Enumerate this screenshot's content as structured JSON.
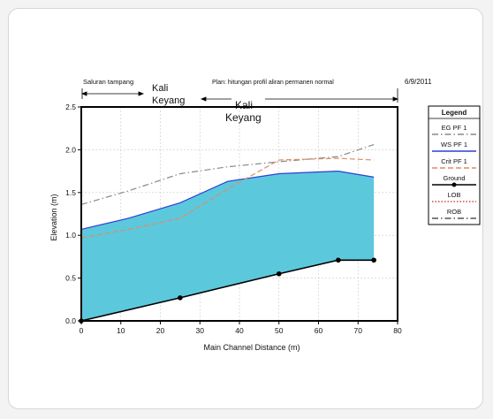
{
  "header": {
    "left": "Saluran tampang",
    "right": "Plan: hitungan profil aliran permanen normal",
    "date": "6/9/2011"
  },
  "annotations": {
    "reach_upper": [
      "Kali",
      "Keyang"
    ],
    "reach_main": [
      "Kali",
      "Keyang"
    ]
  },
  "chart_data": {
    "type": "line",
    "xlabel": "Main Channel Distance (m)",
    "ylabel": "Elevation (m)",
    "xlim": [
      0,
      80
    ],
    "ylim": [
      0,
      2.5
    ],
    "x_ticks": [
      "0",
      "10",
      "20",
      "30",
      "40",
      "50",
      "60",
      "70",
      "80"
    ],
    "y_ticks": [
      "0.0",
      "0.5",
      "1.0",
      "1.5",
      "2.0",
      "2.5"
    ],
    "grid": true,
    "legend_title": "Legend",
    "legend_position": "right",
    "series": [
      {
        "name": "EG PF 1",
        "color": "#888888",
        "style": "dashdot",
        "points": [
          [
            0,
            1.36
          ],
          [
            12,
            1.52
          ],
          [
            25,
            1.72
          ],
          [
            37,
            1.8
          ],
          [
            50,
            1.86
          ],
          [
            65,
            1.92
          ],
          [
            74,
            2.06
          ]
        ]
      },
      {
        "name": "WS PF 1",
        "color": "#2d3fd6",
        "style": "solid",
        "points": [
          [
            0,
            1.07
          ],
          [
            12,
            1.2
          ],
          [
            25,
            1.38
          ],
          [
            37,
            1.63
          ],
          [
            50,
            1.72
          ],
          [
            65,
            1.75
          ],
          [
            74,
            1.68
          ]
        ]
      },
      {
        "name": "Crit PF 1",
        "color": "#e08a6a",
        "style": "dashed",
        "points": [
          [
            0,
            0.97
          ],
          [
            12,
            1.07
          ],
          [
            25,
            1.2
          ],
          [
            37,
            1.54
          ],
          [
            50,
            1.88
          ],
          [
            65,
            1.9
          ],
          [
            74,
            1.88
          ]
        ]
      },
      {
        "name": "Ground",
        "color": "#000000",
        "style": "solid",
        "markers": true,
        "points": [
          [
            0,
            0.0
          ],
          [
            25,
            0.27
          ],
          [
            50,
            0.55
          ],
          [
            65,
            0.71
          ],
          [
            74,
            0.71
          ]
        ]
      },
      {
        "name": "LOB",
        "color": "#d04a3a",
        "style": "dotted",
        "points": []
      },
      {
        "name": "ROB",
        "color": "#555555",
        "style": "dashdot",
        "points": []
      }
    ],
    "fill_color": "#5cc8dc"
  }
}
